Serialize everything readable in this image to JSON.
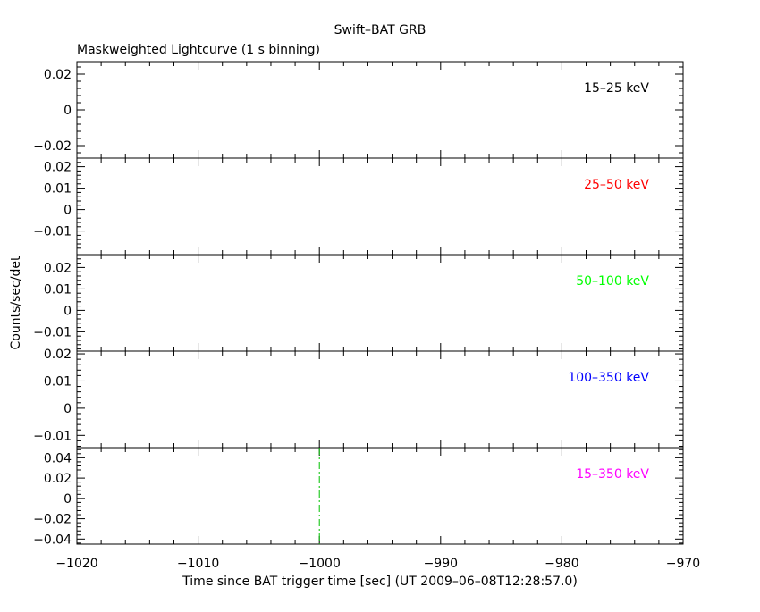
{
  "title": "Swift–BAT GRB",
  "subtitle": "Maskweighted Lightcurve (1 s binning)",
  "ylabel": "Counts/sec/det",
  "xlabel": "Time since BAT trigger time [sec] (UT 2009–06–08T12:28:57.0)",
  "chart_data": {
    "type": "line",
    "title": "Swift–BAT GRB",
    "subtitle": "Maskweighted Lightcurve (1 s binning)",
    "xlabel": "Time since BAT trigger time [sec] (UT 2009–06–08T12:28:57.0)",
    "ylabel": "Counts/sec/det",
    "xlim": [
      -1020,
      -970
    ],
    "x_ticks": [
      -1020,
      -1010,
      -1000,
      -990,
      -980,
      -970
    ],
    "x_tick_labels": [
      "−1020",
      "−1010",
      "−1000",
      "−990",
      "−980",
      "−970"
    ],
    "marker_x": -1000,
    "marker_color": "#00c000",
    "grid": false,
    "panels": [
      {
        "band": "15–25 keV",
        "color": "#000000",
        "ylim": [
          -0.027,
          0.027
        ],
        "ticks": [
          -0.02,
          0,
          0.02
        ],
        "tick_labels": [
          "−0.02",
          "0",
          "0.02"
        ],
        "values": []
      },
      {
        "band": "25–50 keV",
        "color": "#ff0000",
        "ylim": [
          -0.021,
          0.024
        ],
        "ticks": [
          -0.01,
          0,
          0.01,
          0.02
        ],
        "tick_labels": [
          "−0.01",
          "0",
          "0.01",
          "0.02"
        ],
        "values": []
      },
      {
        "band": "50–100 keV",
        "color": "#00ff00",
        "ylim": [
          -0.019,
          0.026
        ],
        "ticks": [
          -0.01,
          0,
          0.01,
          0.02
        ],
        "tick_labels": [
          "−0.01",
          "0",
          "0.01",
          "0.02"
        ],
        "values": []
      },
      {
        "band": "100–350 keV",
        "color": "#0000ff",
        "ylim": [
          -0.0145,
          0.021
        ],
        "ticks": [
          -0.01,
          0,
          0.01,
          0.02
        ],
        "tick_labels": [
          "−0.01",
          "0",
          "0.01",
          "0.02"
        ],
        "values": []
      },
      {
        "band": "15–350 keV",
        "color": "#ff00ff",
        "ylim": [
          -0.045,
          0.05
        ],
        "ticks": [
          -0.04,
          -0.02,
          0,
          0.02,
          0.04
        ],
        "tick_labels": [
          "−0.04",
          "−0.02",
          "0",
          "0.02",
          "0.04"
        ],
        "values": []
      }
    ]
  }
}
